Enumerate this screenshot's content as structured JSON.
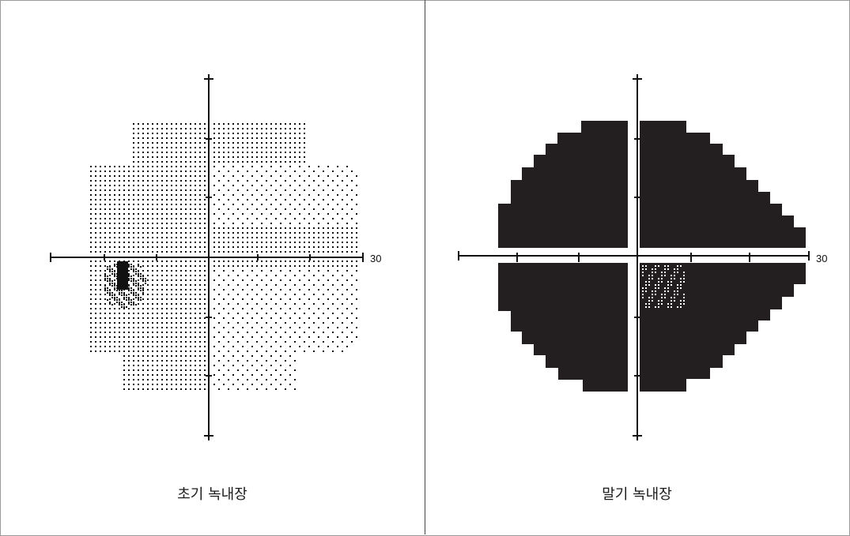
{
  "panels": [
    {
      "id": "early",
      "caption": "초기 녹내장",
      "scale_label": "30",
      "stage": "early glaucoma",
      "defect": "small dense arcuate scotoma inferior-nasal, just below the horizontal meridian"
    },
    {
      "id": "late",
      "caption": "말기 녹내장",
      "scale_label": "30",
      "stage": "end-stage glaucoma",
      "defect": "near-total field loss in all four quadrants with residual island near fixation"
    }
  ],
  "colors": {
    "ink": "#111111",
    "dense": "#231f20",
    "frame": "#9a9a9a"
  }
}
